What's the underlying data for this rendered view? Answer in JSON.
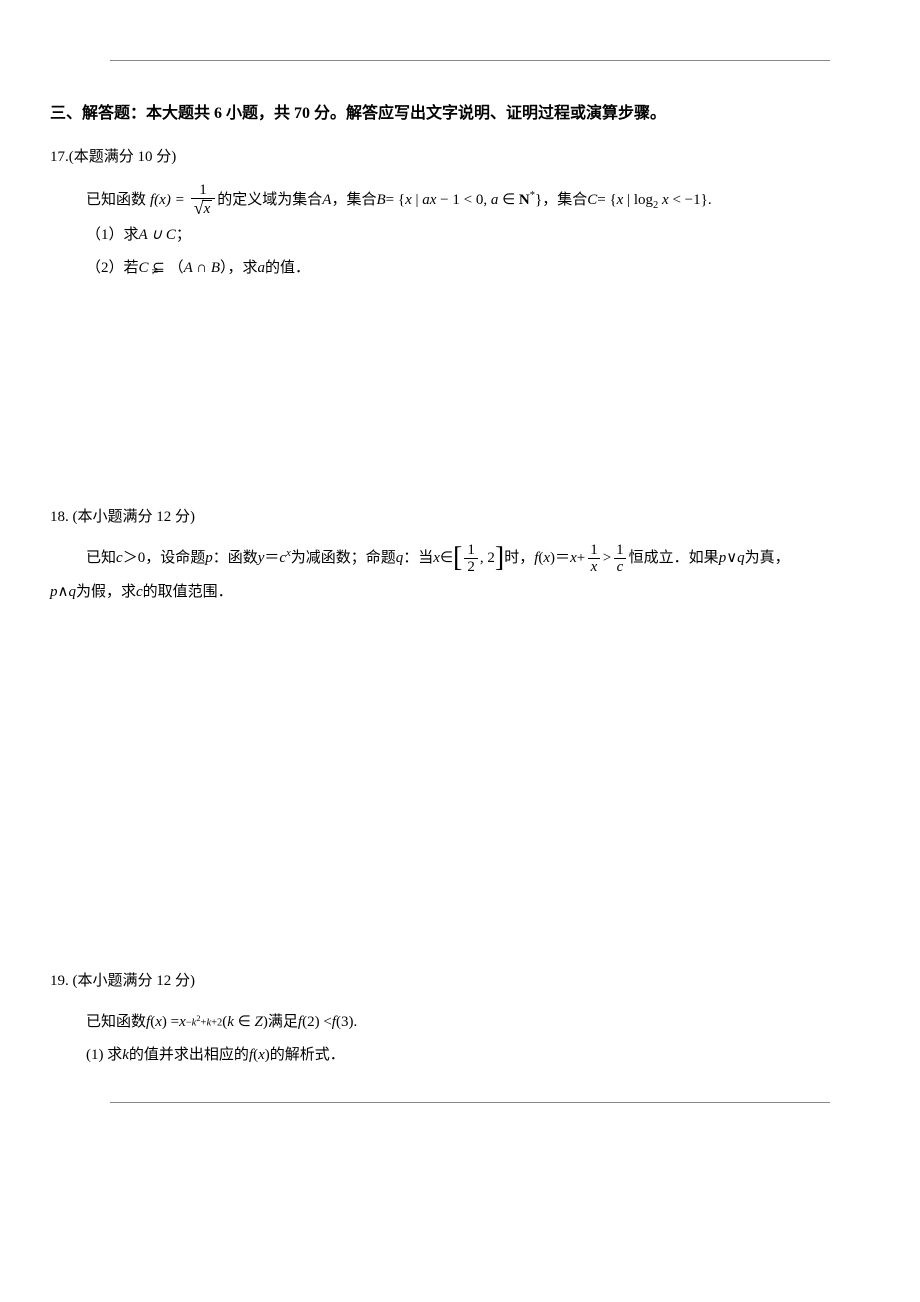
{
  "section_header": "三、解答题：本大题共 6 小题，共 70 分。解答应写出文字说明、证明过程或演算步骤。",
  "q17": {
    "head": "17.(本题满分 10 分)",
    "prefix1": "已知函数",
    "mid1": " 的定义域为集合 ",
    "A": "A",
    "comma1": " ，集合 ",
    "comma2": " ，集合 ",
    "period": " .",
    "part1_label": "（1）求 ",
    "part1_tail": " ；",
    "part2_label": "（2）若 ",
    "part2_mid1": "（",
    "part2_mid2": "），求 ",
    "part2_tail": " 的值．",
    "a_var": "a",
    "c_var": "C"
  },
  "q18": {
    "head": "18. (本小题满分 12 分)",
    "prefix": "已知 ",
    "c_gt0": "＞0，设命题 ",
    "p": "p",
    "colon1": "：函数 ",
    "dec": " 为减函数；命题 ",
    "q": "q",
    "colon2": "：当 ",
    "in": "∈",
    "when": "时，",
    "hold": "恒成立．如果 ",
    "or": "∨",
    "true": " 为真，",
    "and": "∧",
    "false": " 为假，求 ",
    "c_var": "c",
    "range": " 的取值范围．",
    "x": "x",
    "y": "y",
    "fx_eq": "＝"
  },
  "q19": {
    "head": "19. (本小题满分 12 分)",
    "prefix": "已知函数 ",
    "sat": " 满足 ",
    "period": " .",
    "part1_label": "(1) 求 ",
    "k": "k",
    "mid": " 的值并求出相应的 ",
    "tail": " 的解析式．"
  }
}
